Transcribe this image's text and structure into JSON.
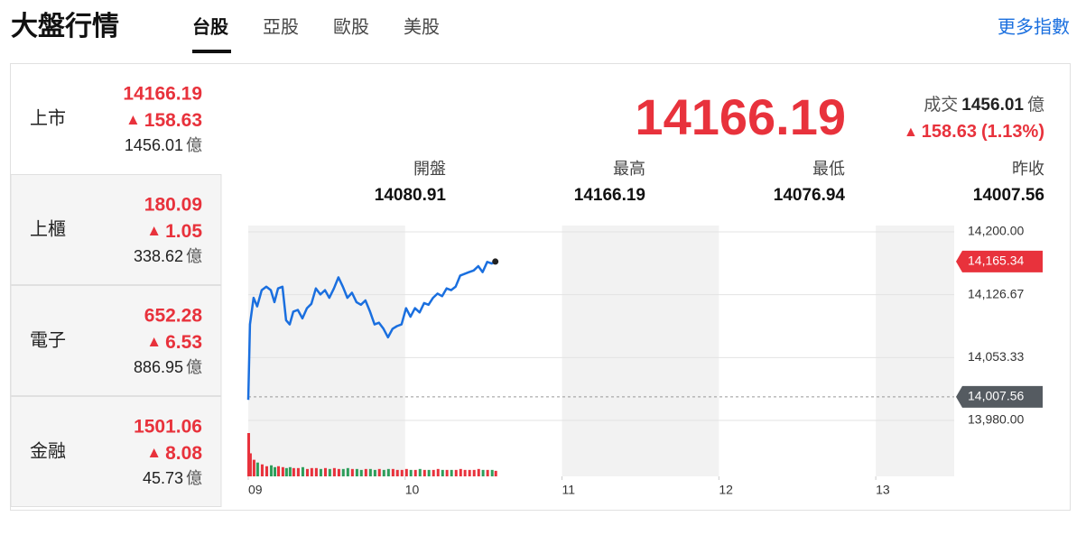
{
  "header": {
    "title": "大盤行情",
    "tabs": [
      "台股",
      "亞股",
      "歐股",
      "美股"
    ],
    "active_tab": 0,
    "more_link": "更多指數"
  },
  "up_marker": "▲",
  "unit": "億",
  "active_market": 0,
  "markets": [
    {
      "name": "上市",
      "value": 14166.19,
      "change": 158.63,
      "volume": 1456.01
    },
    {
      "name": "上櫃",
      "value": 180.09,
      "change": 1.05,
      "volume": 338.62
    },
    {
      "name": "電子",
      "value": 652.28,
      "change": 6.53,
      "volume": 886.95
    },
    {
      "name": "金融",
      "value": 1501.06,
      "change": 8.08,
      "volume": 45.73
    }
  ],
  "detail": {
    "price": 14166.19,
    "volume_label": "成交",
    "volume": 1456.01,
    "change": 158.63,
    "change_pct": "(1.13%)",
    "stats": [
      {
        "label": "開盤",
        "value": 14080.91
      },
      {
        "label": "最高",
        "value": 14166.19
      },
      {
        "label": "最低",
        "value": 14076.94
      },
      {
        "label": "昨收",
        "value": 14007.56
      }
    ]
  },
  "chart_data": {
    "type": "line",
    "color": "#1a6fdf",
    "grid": true,
    "x": [
      9,
      9.011,
      9.034,
      9.057,
      9.086,
      9.115,
      9.144,
      9.167,
      9.19,
      9.218,
      9.241,
      9.264,
      9.287,
      9.316,
      9.345,
      9.374,
      9.402,
      9.431,
      9.46,
      9.489,
      9.517,
      9.546,
      9.575,
      9.603,
      9.632,
      9.661,
      9.69,
      9.718,
      9.747,
      9.776,
      9.805,
      9.833,
      9.862,
      9.891,
      9.92,
      9.948,
      9.977,
      10.006,
      10.034,
      10.063,
      10.092,
      10.121,
      10.149,
      10.178,
      10.207,
      10.236,
      10.264,
      10.293,
      10.322,
      10.351,
      10.379,
      10.408,
      10.437,
      10.466,
      10.494,
      10.523,
      10.552,
      10.575
    ],
    "values": [
      14004,
      14092,
      14123,
      14113,
      14132,
      14136,
      14132,
      14118,
      14134,
      14136,
      14097,
      14092,
      14107,
      14109,
      14099,
      14111,
      14116,
      14134,
      14127,
      14132,
      14123,
      14134,
      14147,
      14136,
      14123,
      14129,
      14118,
      14115,
      14120,
      14107,
      14092,
      14094,
      14087,
      14077,
      14087,
      14090,
      14092,
      14111,
      14101,
      14111,
      14106,
      14117,
      14115,
      14123,
      14128,
      14125,
      14134,
      14132,
      14136,
      14149,
      14151,
      14153,
      14155,
      14160,
      14153,
      14165,
      14163,
      14165.34
    ],
    "volume": [
      47,
      25,
      18,
      15,
      13,
      11,
      12,
      10,
      11,
      10,
      9,
      10,
      9,
      9,
      10,
      8,
      9,
      9,
      8,
      9,
      8,
      9,
      8,
      8,
      9,
      8,
      8,
      7,
      8,
      8,
      7,
      8,
      7,
      8,
      8,
      7,
      7,
      8,
      7,
      7,
      8,
      7,
      7,
      7,
      8,
      7,
      7,
      7,
      7,
      8,
      7,
      7,
      7,
      8,
      7,
      7,
      7,
      6
    ],
    "up_color": "#e8323c",
    "down_color": "#2e9e5b",
    "xlim": [
      9,
      13.5
    ],
    "xticks": [
      {
        "value": 9,
        "label": "09"
      },
      {
        "value": 10,
        "label": "10"
      },
      {
        "value": 11,
        "label": "11"
      },
      {
        "value": 12,
        "label": "12"
      },
      {
        "value": 13,
        "label": "13"
      }
    ],
    "ylim": [
      13980,
      14200
    ],
    "yticks": [
      {
        "value": 14200,
        "label": "14,200.00"
      },
      {
        "value": 14126.67,
        "label": "14,126.67"
      },
      {
        "value": 14053.33,
        "label": "14,053.33"
      },
      {
        "value": 13980,
        "label": "13,980.00"
      }
    ],
    "reference_line": {
      "value": 14007.56,
      "label": "14,007.56",
      "color": "#555b61"
    },
    "last_price": {
      "value": 14165.34,
      "label": "14,165.34",
      "color": "#e8323c"
    }
  }
}
